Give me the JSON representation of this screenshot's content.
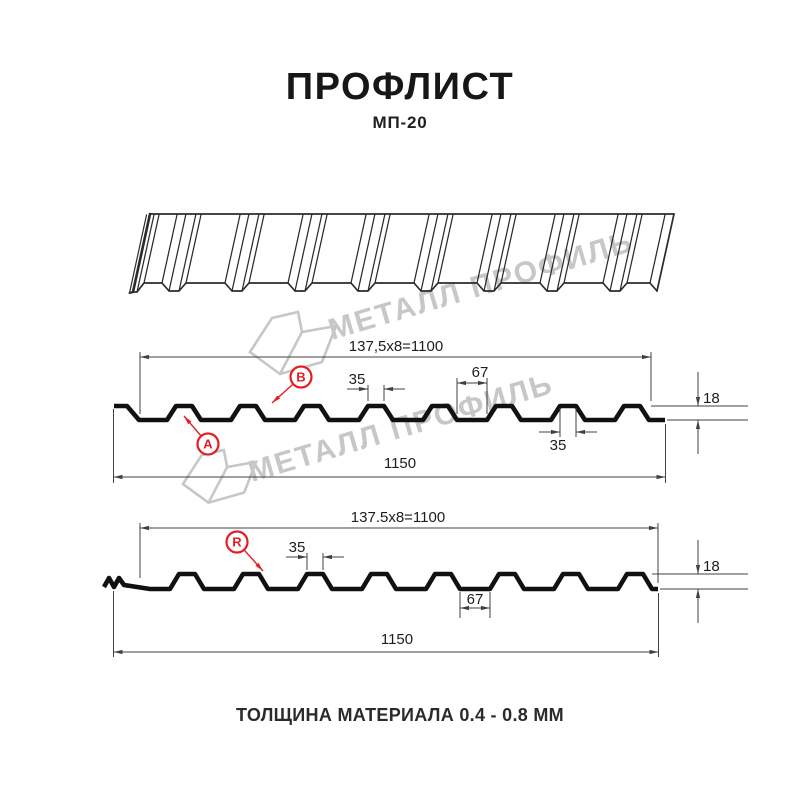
{
  "header": {
    "title": "ПРОФЛИСТ",
    "subtitle": "МП-20"
  },
  "footer": {
    "note": "ТОЛЩИНА МАТЕРИАЛА 0.4 - 0.8 ММ"
  },
  "watermark": {
    "brand": "МЕТАЛЛ ПРОФИЛЬ"
  },
  "colors": {
    "accent": "#e31e24",
    "ink": "#111111",
    "sketch": "#2b2b2b",
    "dim_line": "#404040",
    "dim_text": "#1d1d1d",
    "watermark": "#9a9a9a"
  },
  "diagrams": [
    {
      "id": "profile-ab",
      "markers": [
        {
          "label": "B"
        },
        {
          "label": "A"
        }
      ],
      "dimensions": {
        "top_pitch": "137,5x8=1100",
        "crest_top": "35",
        "valley_width": "67",
        "rib_height": "18",
        "crest_bottom": "35",
        "overall_width": "1150"
      }
    },
    {
      "id": "profile-r",
      "markers": [
        {
          "label": "R"
        }
      ],
      "dimensions": {
        "top_pitch": "137.5x8=1100",
        "crest_top": "35",
        "valley_width": "67",
        "rib_height": "18",
        "overall_width": "1150"
      }
    }
  ]
}
